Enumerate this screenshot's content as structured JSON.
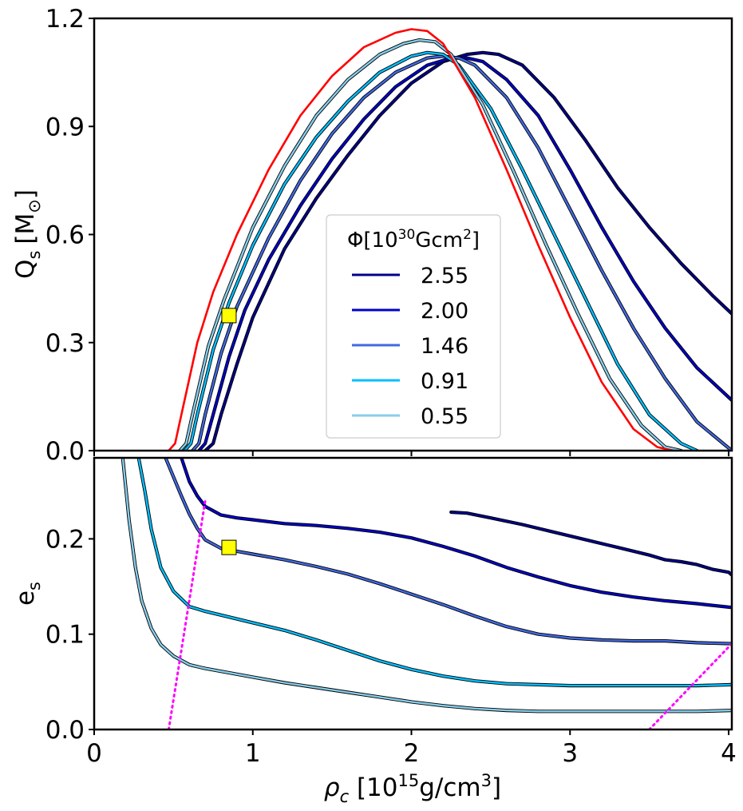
{
  "chart_data": [
    {
      "type": "line",
      "panel": "top",
      "ylabel_main": "Q",
      "ylabel_sub": "s",
      "ylabel_unit_pre": "[M",
      "ylabel_unit_sub": "⊙",
      "ylabel_unit_post": "]",
      "xlim": [
        0,
        4.02
      ],
      "ylim": [
        0,
        1.2
      ],
      "yticks": [
        {
          "value": 0.0,
          "label": "0.0"
        },
        {
          "value": 0.3,
          "label": "0.3"
        },
        {
          "value": 0.6,
          "label": "0.6"
        },
        {
          "value": 0.9,
          "label": "0.9"
        },
        {
          "value": 1.2,
          "label": "1.2"
        }
      ],
      "legend": {
        "position": "lower-center",
        "title_pre": "Φ[10",
        "title_sup1": "30",
        "title_mid": "Gcm",
        "title_sup2": "2",
        "title_post": "]"
      },
      "series": [
        {
          "name": "2.55",
          "color": "#00008b",
          "x": [
            0.7,
            0.75,
            0.8,
            0.9,
            1.0,
            1.2,
            1.4,
            1.6,
            1.8,
            2.0,
            2.2,
            2.35,
            2.45,
            2.55,
            2.7,
            2.9,
            3.1,
            3.3,
            3.5,
            3.7,
            3.9,
            4.02
          ],
          "y": [
            0,
            0.02,
            0.1,
            0.24,
            0.37,
            0.56,
            0.7,
            0.82,
            0.93,
            1.02,
            1.08,
            1.1,
            1.105,
            1.1,
            1.07,
            0.98,
            0.86,
            0.73,
            0.62,
            0.52,
            0.43,
            0.38
          ]
        },
        {
          "name": "2.00",
          "color": "#0000cd",
          "x": [
            0.66,
            0.7,
            0.75,
            0.85,
            0.95,
            1.1,
            1.3,
            1.5,
            1.7,
            1.9,
            2.1,
            2.25,
            2.35,
            2.45,
            2.6,
            2.8,
            3.0,
            3.2,
            3.4,
            3.6,
            3.8,
            4.02
          ],
          "y": [
            0,
            0.02,
            0.1,
            0.26,
            0.39,
            0.53,
            0.68,
            0.81,
            0.92,
            1.01,
            1.07,
            1.09,
            1.09,
            1.08,
            1.03,
            0.93,
            0.78,
            0.62,
            0.47,
            0.34,
            0.23,
            0.14
          ]
        },
        {
          "name": "1.46",
          "color": "#4169e1",
          "x": [
            0.62,
            0.66,
            0.7,
            0.8,
            0.9,
            1.1,
            1.3,
            1.5,
            1.7,
            1.9,
            2.1,
            2.2,
            2.3,
            2.4,
            2.6,
            2.8,
            3.0,
            3.2,
            3.4,
            3.6,
            3.8,
            4.02
          ],
          "y": [
            0,
            0.02,
            0.1,
            0.27,
            0.4,
            0.59,
            0.75,
            0.88,
            0.98,
            1.05,
            1.09,
            1.095,
            1.09,
            1.07,
            0.98,
            0.84,
            0.67,
            0.5,
            0.34,
            0.2,
            0.08,
            0
          ]
        },
        {
          "name": "0.91",
          "color": "#00bfff",
          "x": [
            0.57,
            0.61,
            0.65,
            0.75,
            0.85,
            1.0,
            1.2,
            1.4,
            1.6,
            1.8,
            2.0,
            2.1,
            2.2,
            2.3,
            2.5,
            2.7,
            2.9,
            3.1,
            3.3,
            3.5,
            3.7,
            3.8
          ],
          "y": [
            0,
            0.02,
            0.1,
            0.28,
            0.41,
            0.57,
            0.74,
            0.87,
            0.97,
            1.05,
            1.095,
            1.105,
            1.1,
            1.07,
            0.95,
            0.78,
            0.6,
            0.42,
            0.24,
            0.1,
            0.02,
            0
          ]
        },
        {
          "name": "0.55",
          "color": "#87ceeb",
          "x": [
            0.54,
            0.58,
            0.62,
            0.72,
            0.82,
            1.0,
            1.2,
            1.4,
            1.6,
            1.8,
            1.95,
            2.05,
            2.15,
            2.25,
            2.45,
            2.65,
            2.85,
            3.05,
            3.25,
            3.45,
            3.6,
            3.7
          ],
          "y": [
            0,
            0.02,
            0.1,
            0.29,
            0.42,
            0.62,
            0.79,
            0.93,
            1.03,
            1.1,
            1.13,
            1.14,
            1.135,
            1.1,
            0.96,
            0.77,
            0.57,
            0.38,
            0.2,
            0.07,
            0.01,
            0
          ]
        },
        {
          "name": "",
          "color": "#ff0000",
          "x": [
            0.47,
            0.51,
            0.55,
            0.65,
            0.75,
            0.9,
            1.1,
            1.3,
            1.5,
            1.7,
            1.9,
            2.0,
            2.1,
            2.2,
            2.4,
            2.6,
            2.8,
            3.0,
            3.2,
            3.4,
            3.55,
            3.65
          ],
          "y": [
            0,
            0.02,
            0.1,
            0.3,
            0.44,
            0.6,
            0.78,
            0.93,
            1.04,
            1.12,
            1.16,
            1.17,
            1.165,
            1.13,
            0.98,
            0.78,
            0.57,
            0.37,
            0.19,
            0.06,
            0.01,
            0
          ]
        }
      ],
      "marker": {
        "x": 0.85,
        "y": 0.375,
        "color": "#ffff00"
      }
    },
    {
      "type": "line",
      "panel": "bottom",
      "ylabel_main": "e",
      "ylabel_sub": "s",
      "xlabel_main": "ρ",
      "xlabel_sub": "c",
      "xlabel_pre": " [10",
      "xlabel_sup1": "15",
      "xlabel_mid": "g/cm",
      "xlabel_sup2": "3",
      "xlabel_post": "]",
      "xlim": [
        0,
        4.02
      ],
      "ylim": [
        0,
        0.285
      ],
      "xticks": [
        {
          "value": 0,
          "label": "0"
        },
        {
          "value": 1,
          "label": "1"
        },
        {
          "value": 2,
          "label": "2"
        },
        {
          "value": 3,
          "label": "3"
        },
        {
          "value": 4,
          "label": "4"
        }
      ],
      "yticks": [
        {
          "value": 0.0,
          "label": "0.0"
        },
        {
          "value": 0.1,
          "label": "0.1"
        },
        {
          "value": 0.2,
          "label": "0.2"
        }
      ],
      "series": [
        {
          "name": "2.55",
          "color": "#00008b",
          "x": [
            2.25,
            2.35,
            2.5,
            2.7,
            2.9,
            3.1,
            3.3,
            3.5,
            3.6,
            3.7,
            3.8,
            3.9,
            4.0,
            4.02
          ],
          "y": [
            0.228,
            0.227,
            0.222,
            0.215,
            0.207,
            0.199,
            0.191,
            0.183,
            0.178,
            0.176,
            0.173,
            0.168,
            0.165,
            0.162
          ]
        },
        {
          "name": "2.00",
          "color": "#0000cd",
          "x": [
            0.55,
            0.6,
            0.65,
            0.7,
            0.8,
            0.9,
            1.0,
            1.2,
            1.4,
            1.6,
            1.8,
            2.0,
            2.2,
            2.4,
            2.6,
            2.8,
            3.0,
            3.2,
            3.4,
            3.6,
            3.8,
            4.02
          ],
          "y": [
            0.285,
            0.26,
            0.245,
            0.234,
            0.225,
            0.222,
            0.22,
            0.216,
            0.214,
            0.211,
            0.207,
            0.201,
            0.192,
            0.182,
            0.17,
            0.16,
            0.151,
            0.144,
            0.139,
            0.135,
            0.132,
            0.128
          ]
        },
        {
          "name": "1.46",
          "color": "#4169e1",
          "x": [
            0.45,
            0.5,
            0.55,
            0.6,
            0.65,
            0.7,
            0.8,
            0.9,
            1.0,
            1.2,
            1.4,
            1.6,
            1.8,
            2.0,
            2.2,
            2.4,
            2.6,
            2.8,
            3.0,
            3.2,
            3.4,
            3.6,
            3.8,
            4.02
          ],
          "y": [
            0.285,
            0.265,
            0.245,
            0.226,
            0.211,
            0.199,
            0.19,
            0.187,
            0.184,
            0.178,
            0.171,
            0.163,
            0.153,
            0.142,
            0.131,
            0.119,
            0.108,
            0.1,
            0.096,
            0.094,
            0.093,
            0.093,
            0.091,
            0.09
          ]
        },
        {
          "name": "0.91",
          "color": "#00bfff",
          "x": [
            0.28,
            0.32,
            0.36,
            0.42,
            0.5,
            0.6,
            0.7,
            0.8,
            1.0,
            1.2,
            1.4,
            1.6,
            1.8,
            2.0,
            2.2,
            2.4,
            2.6,
            2.8,
            3.0,
            3.2,
            3.4,
            3.6,
            3.8,
            4.02
          ],
          "y": [
            0.285,
            0.25,
            0.21,
            0.17,
            0.145,
            0.129,
            0.124,
            0.12,
            0.112,
            0.104,
            0.094,
            0.083,
            0.072,
            0.063,
            0.056,
            0.051,
            0.048,
            0.047,
            0.046,
            0.046,
            0.046,
            0.046,
            0.046,
            0.047
          ]
        },
        {
          "name": "0.55",
          "color": "#87ceeb",
          "x": [
            0.18,
            0.22,
            0.26,
            0.3,
            0.36,
            0.42,
            0.5,
            0.6,
            0.7,
            0.8,
            1.0,
            1.2,
            1.4,
            1.6,
            1.8,
            2.0,
            2.2,
            2.4,
            2.6,
            2.8,
            3.0,
            3.2,
            3.4,
            3.6,
            3.8,
            4.02
          ],
          "y": [
            0.285,
            0.22,
            0.17,
            0.135,
            0.106,
            0.089,
            0.077,
            0.068,
            0.064,
            0.061,
            0.055,
            0.049,
            0.044,
            0.039,
            0.034,
            0.029,
            0.025,
            0.022,
            0.02,
            0.019,
            0.019,
            0.019,
            0.019,
            0.019,
            0.019,
            0.02
          ]
        }
      ],
      "dotted_lines": [
        {
          "color": "#ff00ff",
          "x": [
            0.47,
            0.7
          ],
          "y": [
            0,
            0.24
          ]
        },
        {
          "color": "#ff00ff",
          "x": [
            3.5,
            4.02
          ],
          "y": [
            0,
            0.09
          ]
        }
      ],
      "marker": {
        "x": 0.85,
        "y": 0.191,
        "color": "#ffff00"
      }
    }
  ]
}
